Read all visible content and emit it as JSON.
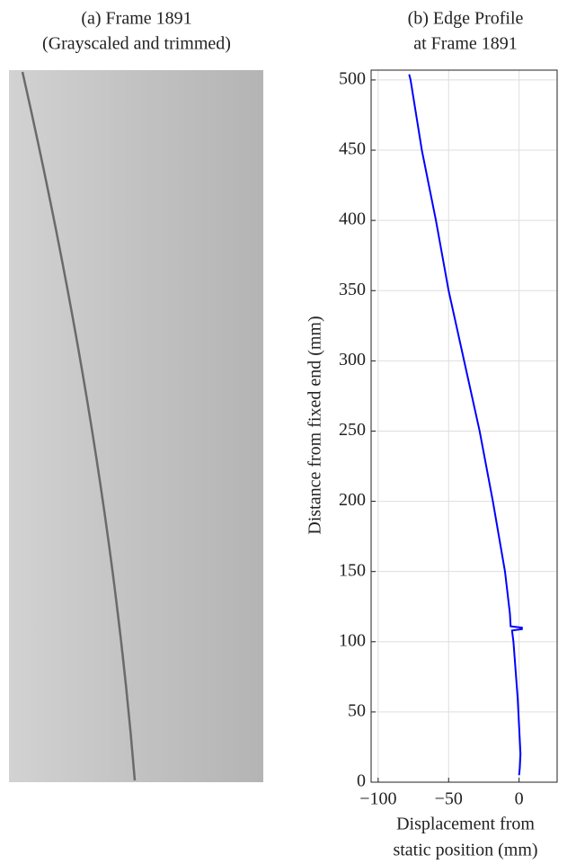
{
  "image_panel": {
    "title": [
      "(a) Frame 1891",
      "(Grayscaled and trimmed)"
    ]
  },
  "chart_data": {
    "type": "line",
    "title": [
      "(b) Edge Profile",
      "at Frame 1891"
    ],
    "x_label": [
      "Displacement from",
      "static position (mm)"
    ],
    "y_label": "Distance from fixed end (mm)",
    "xlim": [
      -105,
      27
    ],
    "ylim": [
      0,
      507
    ],
    "xticks": [
      {
        "value": -100,
        "label": "−100"
      },
      {
        "value": -50,
        "label": "−50"
      },
      0
    ],
    "yticks": [
      0,
      50,
      100,
      150,
      200,
      250,
      300,
      350,
      400,
      450,
      500
    ],
    "grid": true,
    "series": [
      {
        "color": "#0000ff",
        "x": [
          -78,
          -77,
          -69,
          -59,
          -50,
          -39,
          -28,
          -18.6,
          -10,
          -6.5,
          -6,
          2,
          2,
          -5,
          -4,
          -2.5,
          -1,
          0,
          1,
          0.5,
          0
        ],
        "values": [
          504,
          500,
          450,
          400,
          350,
          300,
          250,
          200,
          150,
          120,
          111,
          110,
          109,
          108,
          100,
          80,
          60,
          40,
          20,
          10,
          5
        ]
      }
    ]
  }
}
